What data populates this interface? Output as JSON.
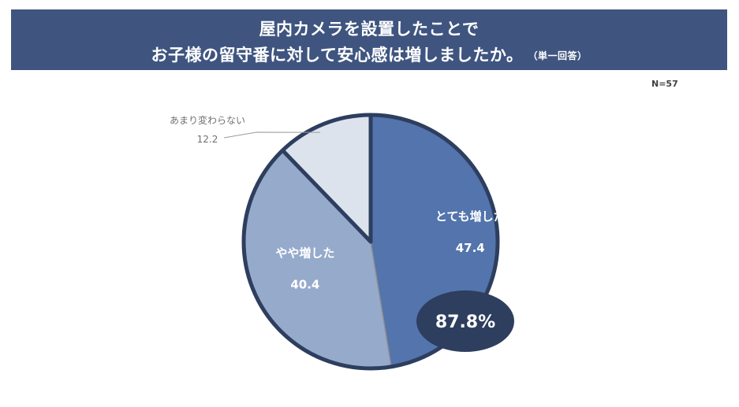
{
  "title": {
    "line1": "屋内カメラを設置したことで",
    "line2": "お子様の留守番に対して安心感は増しましたか。",
    "note": "（単一回答）"
  },
  "sample_size": "N=57",
  "colors": {
    "banner": "#3f5580",
    "slice_strong": "#5374ac",
    "slice_somewhat": "#96aacb",
    "slice_not_much": "#dde3ed",
    "outline": "#2d3e5f",
    "total_badge": "#2d3e5f"
  },
  "chart_data": {
    "type": "pie",
    "slices": [
      {
        "label": "とても増した",
        "value": 47.4,
        "value_text": "47.4"
      },
      {
        "label": "やや増した",
        "value": 40.4,
        "value_text": "40.4"
      },
      {
        "label": "あまり変わらない",
        "value": 12.2,
        "value_text": "12.2"
      }
    ],
    "total_highlight": "87.8%",
    "start_angle": "12 o'clock",
    "direction": "clockwise"
  }
}
